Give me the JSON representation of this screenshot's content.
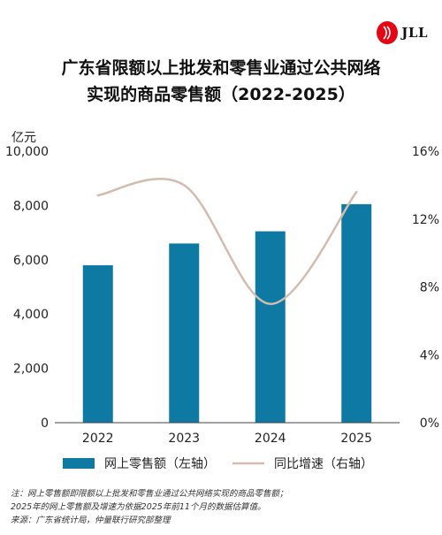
{
  "logo": {
    "text": "JLL",
    "icon": "jll-logo-icon"
  },
  "title_lines": [
    "广东省限额以上批发和零售业通过公共网络",
    "实现的商品零售额（2022-2025）"
  ],
  "chart_data": {
    "type": "bar",
    "categories": [
      "2022",
      "2023",
      "2024",
      "2025"
    ],
    "series": [
      {
        "name": "网上零售额（左轴）",
        "axis": "left",
        "kind": "bar",
        "color": "#0e7aa3",
        "values": [
          5800,
          6600,
          7050,
          8050
        ]
      },
      {
        "name": "同比增速（右轴）",
        "axis": "right",
        "kind": "line",
        "color": "#d3bcae",
        "values": [
          13.4,
          14.0,
          7.0,
          13.6
        ]
      }
    ],
    "left_axis": {
      "unit": "亿元",
      "ylim": [
        0,
        10000
      ],
      "ticks": [
        "0",
        "2,000",
        "4,000",
        "6,000",
        "8,000",
        "10,000"
      ]
    },
    "right_axis": {
      "ylim": [
        0,
        16
      ],
      "ticks": [
        "0%",
        "4%",
        "8%",
        "12%",
        "16%"
      ]
    },
    "grid": false,
    "legend_position": "bottom"
  },
  "notes": [
    "注：网上零售额即限额以上批发和零售业通过公共网络实现的商品零售额；",
    "2025年的网上零售额及增速为依据2025年前11个月的数据估算值。",
    "来源：广东省统计局，仲量联行研究部整理"
  ]
}
